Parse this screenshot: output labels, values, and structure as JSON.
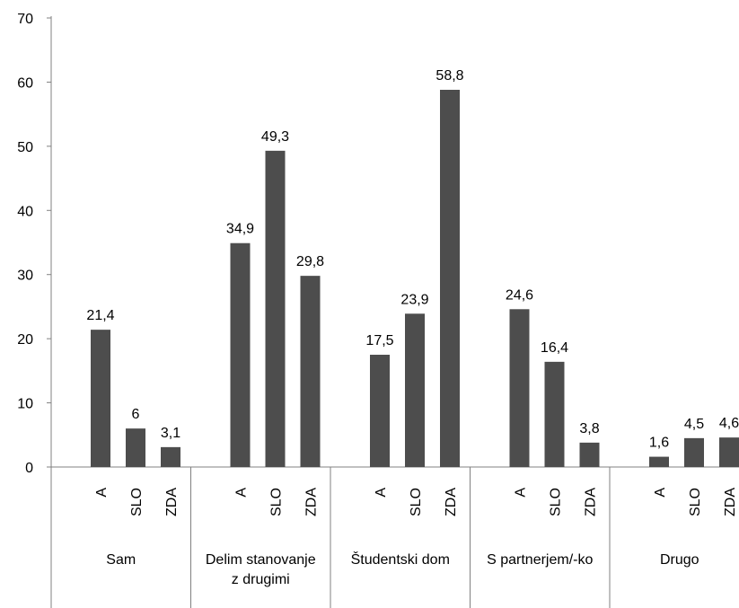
{
  "chart_data": {
    "type": "bar",
    "title": "",
    "xlabel": "",
    "ylabel": "",
    "ylim": [
      0,
      70
    ],
    "yticks": [
      "0",
      "10",
      "20",
      "30",
      "40",
      "50",
      "60",
      "70"
    ],
    "grid": false,
    "legend": "none",
    "bar_color": "#4d4d4d",
    "groups": [
      {
        "label": "Sam",
        "label_lines": [
          "Sam"
        ],
        "bars": [
          {
            "label": "A",
            "value": 21.4,
            "value_text": "21,4"
          },
          {
            "label": "SLO",
            "value": 6,
            "value_text": "6"
          },
          {
            "label": "ZDA",
            "value": 3.1,
            "value_text": "3,1"
          }
        ]
      },
      {
        "label": "Delim stanovanje z drugimi",
        "label_lines": [
          "Delim stanovanje",
          "z drugimi"
        ],
        "bars": [
          {
            "label": "A",
            "value": 34.9,
            "value_text": "34,9"
          },
          {
            "label": "SLO",
            "value": 49.3,
            "value_text": "49,3"
          },
          {
            "label": "ZDA",
            "value": 29.8,
            "value_text": "29,8"
          }
        ]
      },
      {
        "label": "Študentski dom",
        "label_lines": [
          "Študentski dom"
        ],
        "bars": [
          {
            "label": "A",
            "value": 17.5,
            "value_text": "17,5"
          },
          {
            "label": "SLO",
            "value": 23.9,
            "value_text": "23,9"
          },
          {
            "label": "ZDA",
            "value": 58.8,
            "value_text": "58,8"
          }
        ]
      },
      {
        "label": "S partnerjem/-ko",
        "label_lines": [
          "S partnerjem/-ko"
        ],
        "bars": [
          {
            "label": "A",
            "value": 24.6,
            "value_text": "24,6"
          },
          {
            "label": "SLO",
            "value": 16.4,
            "value_text": "16,4"
          },
          {
            "label": "ZDA",
            "value": 3.8,
            "value_text": "3,8"
          }
        ]
      },
      {
        "label": "Drugo",
        "label_lines": [
          "Drugo"
        ],
        "bars": [
          {
            "label": "A",
            "value": 1.6,
            "value_text": "1,6"
          },
          {
            "label": "SLO",
            "value": 4.5,
            "value_text": "4,5"
          },
          {
            "label": "ZDA",
            "value": 4.6,
            "value_text": "4,6"
          }
        ]
      }
    ]
  }
}
